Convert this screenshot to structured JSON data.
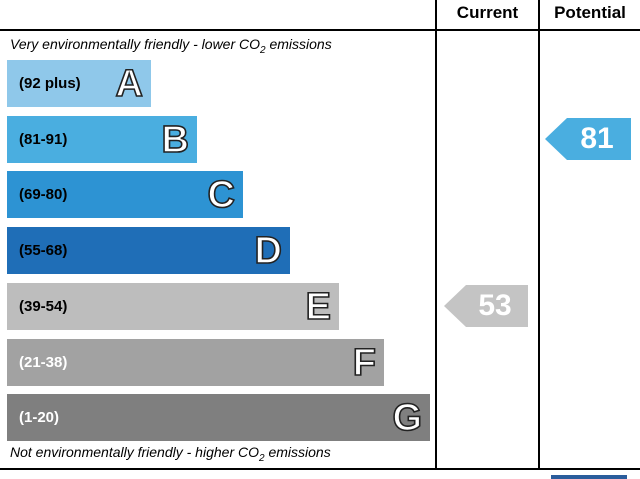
{
  "chart_data": {
    "type": "bar",
    "title": "",
    "columns": {
      "current": "Current",
      "potential": "Potential"
    },
    "top_note": {
      "text": "Very environmentally friendly - lower C",
      "sub_o": "O",
      "sub_2": "2",
      "tail": " emissions"
    },
    "bottom_note": {
      "text": "Not environmentally friendly - higher C",
      "sub_o": "O",
      "sub_2": "2",
      "tail": " emissions"
    },
    "bands": [
      {
        "letter": "A",
        "range": "(92 plus)",
        "color": "#8fc8ea",
        "range_color": "#000000"
      },
      {
        "letter": "B",
        "range": "(81-91)",
        "color": "#4aaee0",
        "range_color": "#000000"
      },
      {
        "letter": "C",
        "range": "(69-80)",
        "color": "#2d93d3",
        "range_color": "#000000"
      },
      {
        "letter": "D",
        "range": "(55-68)",
        "color": "#1f6eb7",
        "range_color": "#000000"
      },
      {
        "letter": "E",
        "range": "(39-54)",
        "color": "#bdbdbd",
        "range_color": "#000000"
      },
      {
        "letter": "F",
        "range": "(21-38)",
        "color": "#a2a2a2",
        "range_color": "#ffffff"
      },
      {
        "letter": "G",
        "range": "(1-20)",
        "color": "#7f7f7f",
        "range_color": "#ffffff"
      }
    ],
    "current": {
      "value": 53,
      "band": "E",
      "color": "#c4c4c4"
    },
    "potential": {
      "value": 81,
      "band": "B",
      "color": "#4aaee0"
    }
  }
}
